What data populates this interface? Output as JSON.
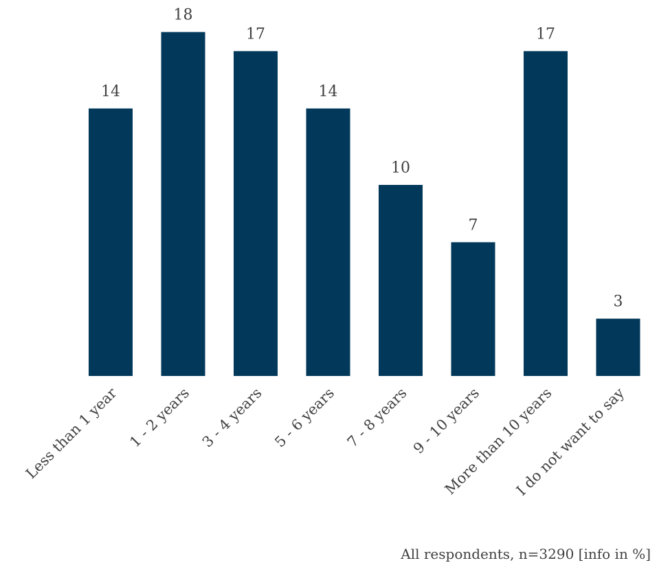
{
  "chart_data": {
    "type": "bar",
    "categories": [
      "Less than 1 year",
      "1 - 2 years",
      "3 - 4 years",
      "5 - 6 years",
      "7 - 8 years",
      "9 - 10 years",
      "More than 10 years",
      "I do not want to say"
    ],
    "values": [
      14,
      18,
      17,
      14,
      10,
      7,
      17,
      3
    ],
    "title": "",
    "xlabel": "",
    "ylabel": "",
    "ylim": [
      0,
      18.5
    ],
    "grid": false,
    "legend": "none",
    "bar_color": "#02395a",
    "footnote": "All respondents, n=3290 [info in %]"
  }
}
